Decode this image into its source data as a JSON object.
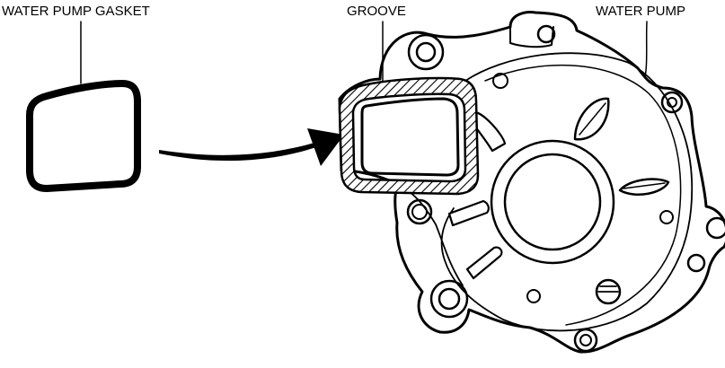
{
  "labels": {
    "gasket": "WATER PUMP GASKET",
    "groove": "GROOVE",
    "pump": "WATER PUMP"
  }
}
